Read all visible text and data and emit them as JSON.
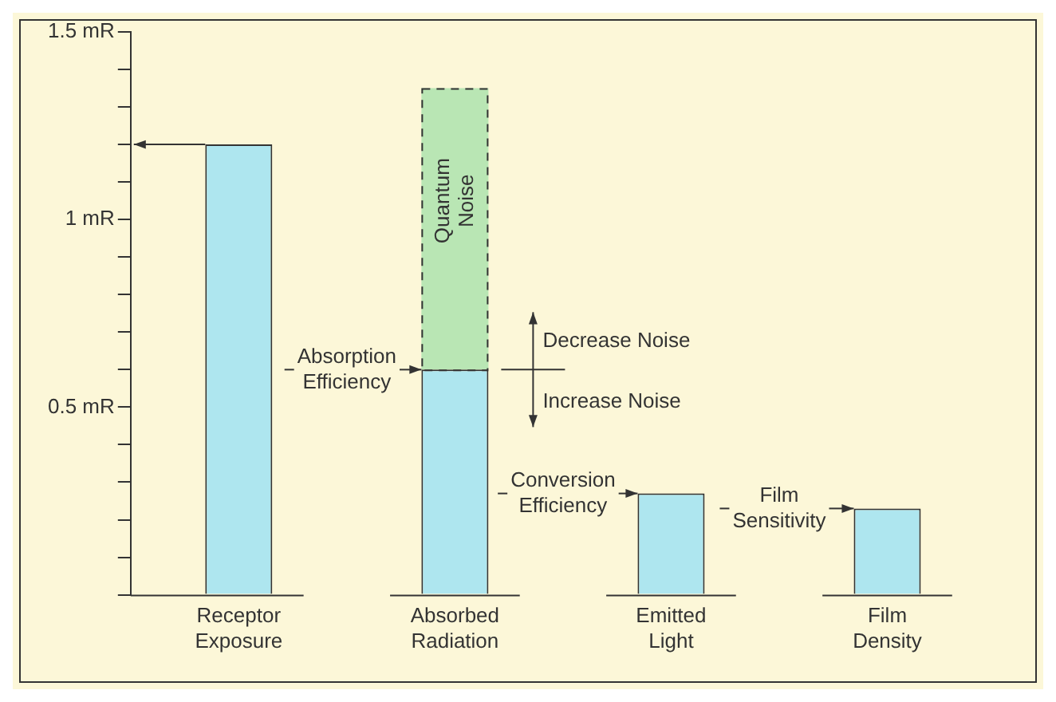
{
  "chart_data": {
    "type": "bar",
    "stacked": true,
    "categories": [
      "Receptor Exposure",
      "Absorbed Radiation",
      "Emitted Light",
      "Film Density"
    ],
    "series": [
      {
        "color": "#aee6ef",
        "values": [
          1.2,
          0.6,
          0.27,
          0.23
        ]
      },
      {
        "name": "Quantum Noise",
        "color": "#b9e6b4",
        "line_style": "dashed",
        "values": [
          null,
          0.75,
          null,
          null
        ]
      }
    ],
    "ylim": [
      0,
      1.5
    ],
    "yticks": [
      {
        "value": 0,
        "label": null
      },
      {
        "value": 0.1,
        "label": null
      },
      {
        "value": 0.2,
        "label": null
      },
      {
        "value": 0.3,
        "label": null
      },
      {
        "value": 0.4,
        "label": null
      },
      {
        "value": 0.5,
        "label": "0.5 mR"
      },
      {
        "value": 0.6,
        "label": null
      },
      {
        "value": 0.7,
        "label": null
      },
      {
        "value": 0.8,
        "label": null
      },
      {
        "value": 0.9,
        "label": null
      },
      {
        "value": 1,
        "label": "1 mR"
      },
      {
        "value": 1.1,
        "label": null
      },
      {
        "value": 1.2,
        "label": null
      },
      {
        "value": 1.3,
        "label": null
      },
      {
        "value": 1.4,
        "label": null
      },
      {
        "value": 1.5,
        "label": "1.5 mR"
      }
    ],
    "grid": false,
    "legend": false,
    "annotations": [
      "Absorption Efficiency",
      "Decrease Noise",
      "Increase Noise",
      "Conversion Efficiency",
      "Film Sensitivity"
    ]
  }
}
